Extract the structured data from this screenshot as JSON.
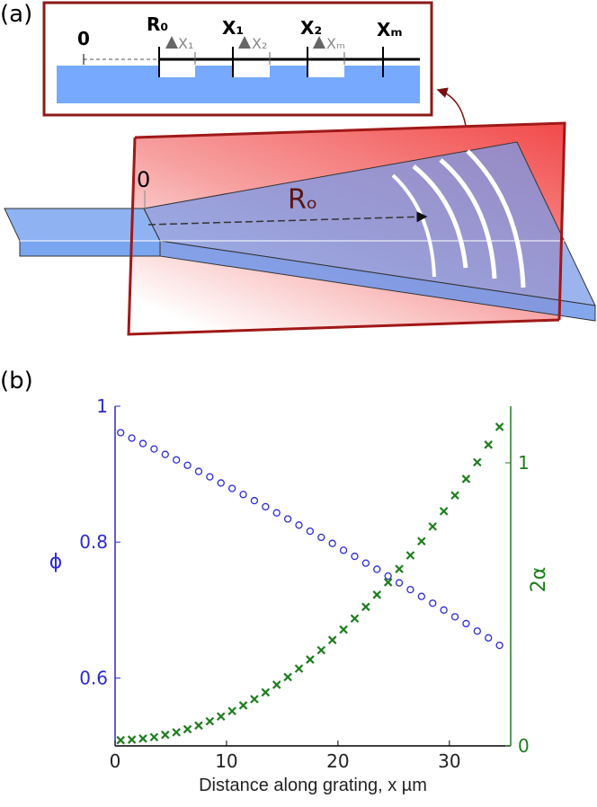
{
  "figure": {
    "panel_a": {
      "label": "(a)",
      "inset": {
        "origin": "0",
        "positions": [
          "R₀",
          "X₁",
          "X₂",
          "Xₘ"
        ],
        "markers": [
          "X₁",
          "X₂",
          "Xₘ"
        ]
      },
      "origin": "0",
      "radius": "Rₒ"
    }
  },
  "chart_data": {
    "type": "scatter",
    "label": "(b)",
    "xlabel": "Distance along grating, x µm",
    "ylabel": "ϕ",
    "y2label": "2α",
    "x": [
      0.5,
      1.5,
      2.5,
      3.5,
      4.5,
      5.5,
      6.5,
      7.5,
      8.5,
      9.5,
      10.5,
      11.5,
      12.5,
      13.5,
      14.5,
      15.5,
      16.5,
      17.5,
      18.5,
      19.5,
      20.5,
      21.5,
      22.5,
      23.5,
      24.5,
      25.5,
      26.5,
      27.5,
      28.5,
      29.5,
      30.5,
      31.5,
      32.5,
      33.5,
      34.5
    ],
    "series": [
      {
        "color": "#2a2ad4",
        "marker": "circle",
        "values": [
          0.961,
          0.953,
          0.945,
          0.937,
          0.929,
          0.921,
          0.913,
          0.904,
          0.896,
          0.887,
          0.879,
          0.87,
          0.861,
          0.852,
          0.843,
          0.834,
          0.825,
          0.816,
          0.807,
          0.798,
          0.788,
          0.779,
          0.769,
          0.76,
          0.75,
          0.74,
          0.73,
          0.72,
          0.71,
          0.7,
          0.69,
          0.68,
          0.669,
          0.659,
          0.648
        ]
      },
      {
        "color": "#1e7d1e",
        "marker": "cross",
        "axis": "y2",
        "values": [
          0.02,
          0.022,
          0.026,
          0.031,
          0.039,
          0.048,
          0.059,
          0.072,
          0.087,
          0.104,
          0.123,
          0.143,
          0.165,
          0.189,
          0.216,
          0.243,
          0.273,
          0.305,
          0.338,
          0.374,
          0.411,
          0.45,
          0.491,
          0.534,
          0.578,
          0.625,
          0.673,
          0.723,
          0.775,
          0.829,
          0.885,
          0.943,
          1.002,
          1.064,
          1.127
        ]
      }
    ],
    "xlim": [
      0,
      35.5
    ],
    "xticks": [
      0,
      10,
      20,
      30
    ],
    "ylim": [
      0.5,
      1
    ],
    "yticks": [
      0.6,
      0.8,
      1
    ],
    "y2lim": [
      0,
      1.2
    ],
    "y2ticks": [
      0,
      1
    ]
  }
}
